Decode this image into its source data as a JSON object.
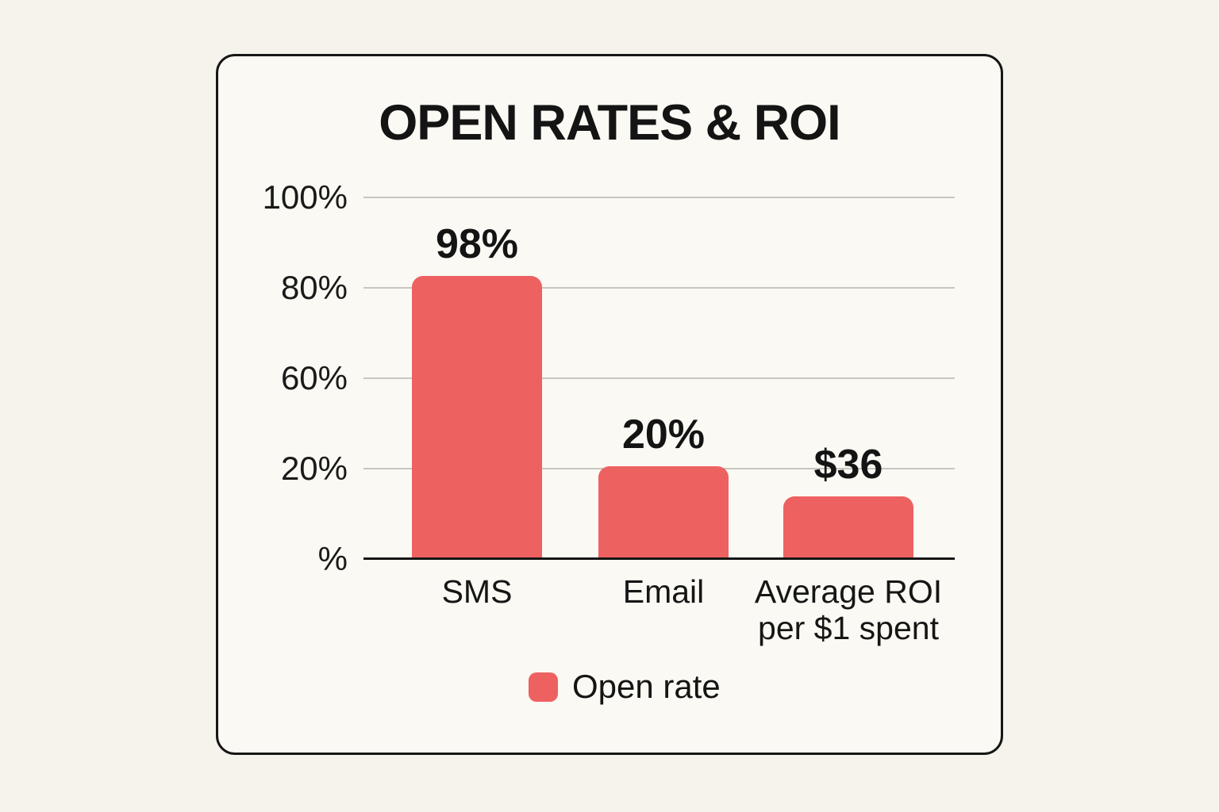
{
  "page": {
    "background_color": "#f6f3ec",
    "card_background_color": "#fbf9f3",
    "card_border_color": "#161616"
  },
  "chart_data": {
    "type": "bar",
    "title": "OPEN RATES & ROI",
    "categories": [
      "SMS",
      "Email",
      "Average ROI per $1 spent"
    ],
    "category_lines": [
      [
        "SMS"
      ],
      [
        "Email"
      ],
      [
        "Average ROI",
        "per $1 spent"
      ]
    ],
    "values": [
      98,
      20,
      36
    ],
    "value_labels": [
      "98%",
      "20%",
      "$36"
    ],
    "units": [
      "percent",
      "percent",
      "dollars"
    ],
    "y_ticks": [
      "100%",
      "80%",
      "60%",
      "20%",
      "%"
    ],
    "xlabel": "",
    "ylabel": "",
    "grid": true,
    "bar_color": "#ee6161",
    "gridline_color": "#c9c6c1",
    "axis_color": "#141414",
    "legend_position": "bottom",
    "legend": [
      {
        "label": "Open rate",
        "color": "#ee6161"
      }
    ],
    "bar_height_fractions": [
      0.783,
      0.257,
      0.173
    ]
  }
}
